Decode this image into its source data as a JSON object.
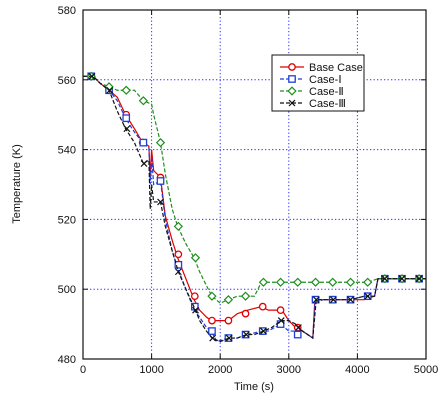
{
  "chart_data": {
    "type": "line",
    "title": "",
    "xlabel": "Time (s)",
    "ylabel": "Temperature (K)",
    "xlim": [
      0,
      5000
    ],
    "ylim": [
      480,
      580
    ],
    "x_ticks": [
      0,
      1000,
      2000,
      3000,
      4000,
      5000
    ],
    "y_ticks": [
      480,
      500,
      520,
      540,
      560,
      580
    ],
    "grid": true,
    "legend_position": "upper-right",
    "series": [
      {
        "name": "Base Case",
        "color": "#e00000",
        "line_style": "solid",
        "marker": "circle",
        "points": [
          [
            0,
            561
          ],
          [
            150,
            561
          ],
          [
            250,
            559
          ],
          [
            380,
            557
          ],
          [
            500,
            555
          ],
          [
            620,
            550
          ],
          [
            750,
            546
          ],
          [
            870,
            542
          ],
          [
            960,
            541
          ],
          [
            980,
            532
          ],
          [
            1000,
            540
          ],
          [
            1030,
            534
          ],
          [
            1130,
            532
          ],
          [
            1200,
            521
          ],
          [
            1300,
            514
          ],
          [
            1380,
            509
          ],
          [
            1500,
            503
          ],
          [
            1620,
            497
          ],
          [
            1700,
            494
          ],
          [
            1800,
            492
          ],
          [
            1870,
            491
          ],
          [
            2000,
            491
          ],
          [
            2120,
            491
          ],
          [
            2250,
            493
          ],
          [
            2400,
            494
          ],
          [
            2600,
            495
          ],
          [
            2700,
            494
          ],
          [
            2850,
            494
          ],
          [
            2900,
            494
          ],
          [
            3000,
            491
          ],
          [
            3100,
            489
          ],
          [
            3200,
            488
          ],
          [
            3350,
            486
          ],
          [
            3380,
            497
          ],
          [
            3500,
            497
          ],
          [
            3700,
            497
          ],
          [
            3900,
            497
          ],
          [
            4100,
            497
          ],
          [
            4250,
            498
          ],
          [
            4300,
            503
          ],
          [
            4400,
            503
          ],
          [
            4650,
            503
          ],
          [
            4900,
            503
          ],
          [
            5000,
            503
          ]
        ],
        "markers": [
          [
            120,
            561
          ],
          [
            380,
            557
          ],
          [
            630,
            550
          ],
          [
            870,
            542
          ],
          [
            1130,
            532
          ],
          [
            1390,
            510
          ],
          [
            1630,
            498
          ],
          [
            1880,
            491
          ],
          [
            2120,
            491
          ],
          [
            2370,
            493
          ],
          [
            2620,
            495
          ],
          [
            2880,
            494
          ],
          [
            3130,
            489
          ],
          [
            3390,
            497
          ],
          [
            3640,
            497
          ],
          [
            3900,
            497
          ],
          [
            4150,
            498
          ],
          [
            4400,
            503
          ],
          [
            4650,
            503
          ],
          [
            4900,
            503
          ]
        ]
      },
      {
        "name": "Case-Ⅰ",
        "color": "#1f3fd6",
        "line_style": "dashed",
        "marker": "square",
        "points": [
          [
            0,
            561
          ],
          [
            150,
            561
          ],
          [
            250,
            559
          ],
          [
            380,
            557
          ],
          [
            500,
            554
          ],
          [
            620,
            549
          ],
          [
            750,
            545
          ],
          [
            870,
            542
          ],
          [
            960,
            541
          ],
          [
            980,
            530
          ],
          [
            1000,
            538
          ],
          [
            1030,
            530
          ],
          [
            1130,
            531
          ],
          [
            1200,
            520
          ],
          [
            1300,
            511
          ],
          [
            1380,
            506
          ],
          [
            1500,
            500
          ],
          [
            1620,
            494
          ],
          [
            1700,
            492
          ],
          [
            1800,
            489
          ],
          [
            1870,
            488
          ],
          [
            1950,
            485
          ],
          [
            2120,
            486
          ],
          [
            2250,
            486
          ],
          [
            2400,
            487
          ],
          [
            2600,
            488
          ],
          [
            2700,
            488
          ],
          [
            2880,
            490
          ],
          [
            3000,
            488
          ],
          [
            3100,
            488
          ],
          [
            3200,
            488
          ],
          [
            3350,
            486
          ],
          [
            3380,
            496
          ],
          [
            3500,
            497
          ],
          [
            3700,
            497
          ],
          [
            3900,
            497
          ],
          [
            4100,
            498
          ],
          [
            4250,
            498
          ],
          [
            4300,
            503
          ],
          [
            4400,
            503
          ],
          [
            4650,
            503
          ],
          [
            4900,
            503
          ],
          [
            5000,
            503
          ]
        ],
        "markers": [
          [
            120,
            561
          ],
          [
            380,
            557
          ],
          [
            630,
            549
          ],
          [
            880,
            542
          ],
          [
            1130,
            531
          ],
          [
            1390,
            507
          ],
          [
            1630,
            495
          ],
          [
            1880,
            488
          ],
          [
            2120,
            486
          ],
          [
            2370,
            487
          ],
          [
            2620,
            488
          ],
          [
            2880,
            490
          ],
          [
            3130,
            487
          ],
          [
            3390,
            497
          ],
          [
            3640,
            497
          ],
          [
            3900,
            497
          ],
          [
            4150,
            498
          ],
          [
            4400,
            503
          ],
          [
            4650,
            503
          ],
          [
            4900,
            503
          ]
        ]
      },
      {
        "name": "Case-Ⅱ",
        "color": "#1d8f1d",
        "line_style": "dashed",
        "marker": "diamond",
        "points": [
          [
            0,
            561
          ],
          [
            150,
            561
          ],
          [
            250,
            559
          ],
          [
            380,
            558
          ],
          [
            500,
            557
          ],
          [
            620,
            557
          ],
          [
            750,
            557
          ],
          [
            880,
            554
          ],
          [
            1000,
            553
          ],
          [
            1030,
            550
          ],
          [
            1130,
            542
          ],
          [
            1200,
            533
          ],
          [
            1300,
            523
          ],
          [
            1380,
            518
          ],
          [
            1500,
            513
          ],
          [
            1620,
            509
          ],
          [
            1700,
            505
          ],
          [
            1800,
            501
          ],
          [
            1880,
            498
          ],
          [
            2000,
            496
          ],
          [
            2120,
            497
          ],
          [
            2250,
            498
          ],
          [
            2370,
            498
          ],
          [
            2500,
            498
          ],
          [
            2600,
            502
          ],
          [
            2700,
            502
          ],
          [
            2880,
            502
          ],
          [
            3000,
            502
          ],
          [
            3130,
            502
          ],
          [
            3200,
            502
          ],
          [
            3390,
            502
          ],
          [
            3500,
            502
          ],
          [
            3640,
            502
          ],
          [
            3900,
            502
          ],
          [
            4100,
            502
          ],
          [
            4150,
            502
          ],
          [
            4300,
            503
          ],
          [
            4400,
            503
          ],
          [
            4650,
            503
          ],
          [
            4900,
            503
          ],
          [
            5000,
            503
          ]
        ],
        "markers": [
          [
            120,
            561
          ],
          [
            380,
            558
          ],
          [
            630,
            557
          ],
          [
            880,
            554
          ],
          [
            1130,
            542
          ],
          [
            1390,
            518
          ],
          [
            1640,
            509
          ],
          [
            1880,
            498
          ],
          [
            2120,
            497
          ],
          [
            2370,
            498
          ],
          [
            2630,
            502
          ],
          [
            2880,
            502
          ],
          [
            3130,
            502
          ],
          [
            3390,
            502
          ],
          [
            3640,
            502
          ],
          [
            3900,
            502
          ],
          [
            4150,
            502
          ],
          [
            4400,
            503
          ],
          [
            4650,
            503
          ],
          [
            4900,
            503
          ]
        ]
      },
      {
        "name": "Case-Ⅲ",
        "color": "#111111",
        "line_style": "dashed",
        "marker": "x",
        "points": [
          [
            0,
            561
          ],
          [
            150,
            561
          ],
          [
            250,
            559
          ],
          [
            380,
            557
          ],
          [
            500,
            551
          ],
          [
            620,
            546
          ],
          [
            750,
            542
          ],
          [
            880,
            536
          ],
          [
            960,
            537
          ],
          [
            980,
            523
          ],
          [
            1000,
            530
          ],
          [
            1030,
            525
          ],
          [
            1130,
            525
          ],
          [
            1200,
            518
          ],
          [
            1300,
            511
          ],
          [
            1390,
            505
          ],
          [
            1500,
            500
          ],
          [
            1640,
            494
          ],
          [
            1700,
            491
          ],
          [
            1800,
            488
          ],
          [
            1880,
            486
          ],
          [
            2000,
            485
          ],
          [
            2130,
            486
          ],
          [
            2250,
            486
          ],
          [
            2380,
            487
          ],
          [
            2500,
            487
          ],
          [
            2630,
            488
          ],
          [
            2750,
            489
          ],
          [
            2890,
            491
          ],
          [
            3000,
            491
          ],
          [
            3100,
            490
          ],
          [
            3200,
            488
          ],
          [
            3350,
            486
          ],
          [
            3400,
            497
          ],
          [
            3500,
            497
          ],
          [
            3650,
            497
          ],
          [
            3900,
            497
          ],
          [
            4100,
            498
          ],
          [
            4250,
            498
          ],
          [
            4300,
            503
          ],
          [
            4400,
            503
          ],
          [
            4650,
            503
          ],
          [
            4900,
            503
          ],
          [
            5000,
            503
          ]
        ],
        "markers": [
          [
            130,
            561
          ],
          [
            390,
            557
          ],
          [
            640,
            546
          ],
          [
            890,
            536
          ],
          [
            1130,
            525
          ],
          [
            1390,
            505
          ],
          [
            1640,
            494
          ],
          [
            1890,
            486
          ],
          [
            2130,
            486
          ],
          [
            2380,
            487
          ],
          [
            2630,
            488
          ],
          [
            2890,
            491
          ],
          [
            3140,
            489
          ],
          [
            3400,
            497
          ],
          [
            3650,
            497
          ],
          [
            3900,
            497
          ],
          [
            4150,
            498
          ],
          [
            4400,
            503
          ],
          [
            4650,
            503
          ],
          [
            4900,
            503
          ]
        ]
      }
    ]
  }
}
